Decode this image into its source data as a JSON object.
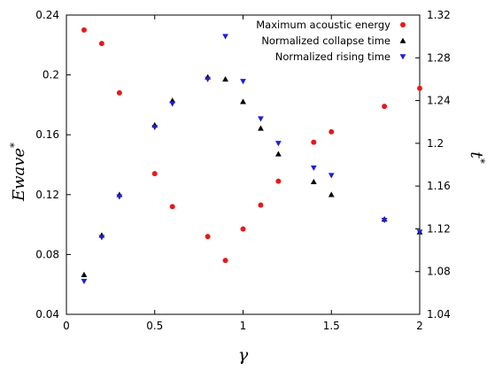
{
  "chart_data": {
    "type": "scatter",
    "xlabel": "γ",
    "ylabel_left": "Ewave",
    "ylabel_left_sup": "*",
    "ylabel_right": "t",
    "ylabel_right_sup": "*",
    "xlim": [
      0,
      2
    ],
    "ylim_left": [
      0.04,
      0.24
    ],
    "ylim_right": [
      1.04,
      1.32
    ],
    "x_ticks": [
      "0",
      "0.5",
      "1",
      "1.5",
      "2"
    ],
    "y_left_ticks": [
      "0.04",
      "0.08",
      "0.12",
      "0.16",
      "0.2",
      "0.24"
    ],
    "y_right_ticks": [
      "1.04",
      "1.08",
      "1.12",
      "1.16",
      "1.2",
      "1.24",
      "1.28",
      "1.32"
    ],
    "grid": false,
    "legend_position": "top-right",
    "series": [
      {
        "name": "Maximum acoustic energy",
        "axis": "left",
        "marker": "circle",
        "color": "#e41a1c",
        "points": [
          [
            0.1,
            0.23
          ],
          [
            0.2,
            0.221
          ],
          [
            0.3,
            0.188
          ],
          [
            0.5,
            0.134
          ],
          [
            0.6,
            0.112
          ],
          [
            0.8,
            0.092
          ],
          [
            0.9,
            0.076
          ],
          [
            1.0,
            0.097
          ],
          [
            1.1,
            0.113
          ],
          [
            1.2,
            0.129
          ],
          [
            1.4,
            0.155
          ],
          [
            1.5,
            0.162
          ],
          [
            1.8,
            0.179
          ],
          [
            2.0,
            0.191
          ]
        ]
      },
      {
        "name": "Normalized collapse time",
        "axis": "right",
        "marker": "triangle-up",
        "color": "#000000",
        "points": [
          [
            0.1,
            1.077
          ],
          [
            0.2,
            1.114
          ],
          [
            0.3,
            1.152
          ],
          [
            0.5,
            1.217
          ],
          [
            0.6,
            1.24
          ],
          [
            0.8,
            1.262
          ],
          [
            0.9,
            1.26
          ],
          [
            1.0,
            1.239
          ],
          [
            1.1,
            1.214
          ],
          [
            1.2,
            1.19
          ],
          [
            1.4,
            1.164
          ],
          [
            1.5,
            1.152
          ],
          [
            1.8,
            1.129
          ],
          [
            2.0,
            1.117
          ]
        ]
      },
      {
        "name": "Normalized rising time",
        "axis": "right",
        "marker": "triangle-down",
        "color": "#1f1fd6",
        "points": [
          [
            0.1,
            1.071
          ],
          [
            0.2,
            1.112
          ],
          [
            0.3,
            1.15
          ],
          [
            0.5,
            1.215
          ],
          [
            0.6,
            1.237
          ],
          [
            0.8,
            1.26
          ],
          [
            0.9,
            1.3
          ],
          [
            1.0,
            1.258
          ],
          [
            1.1,
            1.223
          ],
          [
            1.2,
            1.2
          ],
          [
            1.4,
            1.177
          ],
          [
            1.5,
            1.17
          ],
          [
            1.8,
            1.128
          ],
          [
            2.0,
            1.117
          ]
        ]
      }
    ]
  }
}
